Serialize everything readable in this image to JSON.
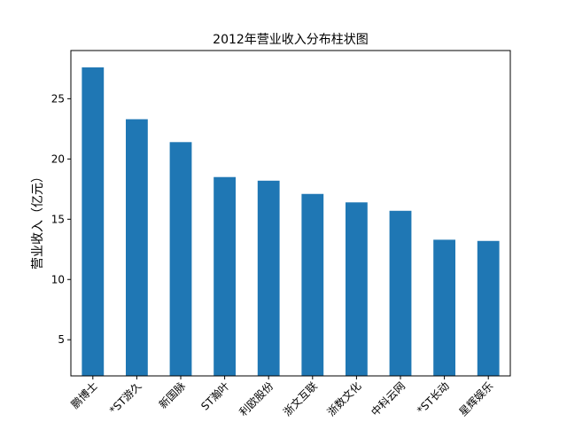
{
  "chart_data": {
    "type": "bar",
    "title": "2012年营业收入分布柱状图",
    "xlabel": "",
    "ylabel": "营业收入（亿元）",
    "categories": [
      "鹏博士",
      "*ST游久",
      "新国脉",
      "ST瀚叶",
      "利欧股份",
      "浙文互联",
      "浙数文化",
      "中科云网",
      "*ST长动",
      "星辉娱乐"
    ],
    "values": [
      27.6,
      23.3,
      21.4,
      18.5,
      18.2,
      17.1,
      16.4,
      15.7,
      13.3,
      13.2
    ],
    "yticks": [
      5,
      10,
      15,
      20,
      25
    ],
    "ylim": [
      2,
      29
    ],
    "bar_color": "#1f77b4",
    "grid": false,
    "legend": "none"
  }
}
